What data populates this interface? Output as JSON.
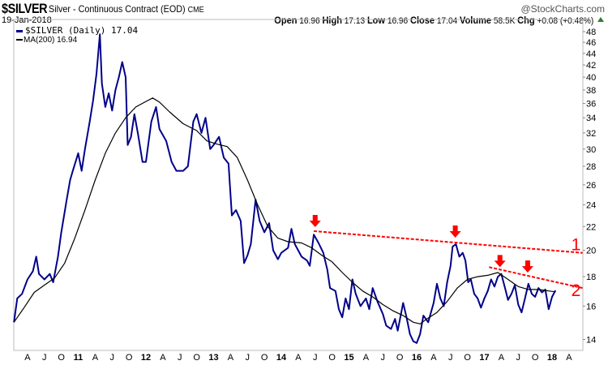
{
  "header": {
    "symbol": "$SILVER",
    "description": "Silver - Continuous Contract (EOD)",
    "exchange": "CME",
    "brand": "@StockCharts.com",
    "date": "19-Jan-2018",
    "stats": [
      {
        "label": "Open",
        "value": "16.96"
      },
      {
        "label": "High",
        "value": "17.13"
      },
      {
        "label": "Low",
        "value": "16.96"
      },
      {
        "label": "Close",
        "value": "17.04"
      },
      {
        "label": "Volume",
        "value": "58.5K"
      },
      {
        "label": "Chg",
        "value": "+0.08 (+0.48%)"
      }
    ]
  },
  "chart_data": {
    "type": "line",
    "title": "$SILVER Silver - Continuous Contract (EOD) CME",
    "yscale": "log",
    "ylim": [
      13.5,
      50
    ],
    "xlim": [
      2010.05,
      2018.45
    ],
    "yticks": [
      14,
      16,
      18,
      20,
      22,
      24,
      26,
      28,
      30,
      32,
      34,
      36,
      38,
      40,
      42,
      44,
      46,
      48
    ],
    "xticks": [
      {
        "t": 2010.25,
        "label": "A",
        "bold": false
      },
      {
        "t": 2010.5,
        "label": "J",
        "bold": false
      },
      {
        "t": 2010.75,
        "label": "O",
        "bold": false
      },
      {
        "t": 2011.0,
        "label": "11",
        "bold": true
      },
      {
        "t": 2011.25,
        "label": "A",
        "bold": false
      },
      {
        "t": 2011.5,
        "label": "J",
        "bold": false
      },
      {
        "t": 2011.75,
        "label": "O",
        "bold": false
      },
      {
        "t": 2012.0,
        "label": "12",
        "bold": true
      },
      {
        "t": 2012.25,
        "label": "A",
        "bold": false
      },
      {
        "t": 2012.5,
        "label": "J",
        "bold": false
      },
      {
        "t": 2012.75,
        "label": "O",
        "bold": false
      },
      {
        "t": 2013.0,
        "label": "13",
        "bold": true
      },
      {
        "t": 2013.25,
        "label": "A",
        "bold": false
      },
      {
        "t": 2013.5,
        "label": "J",
        "bold": false
      },
      {
        "t": 2013.75,
        "label": "O",
        "bold": false
      },
      {
        "t": 2014.0,
        "label": "14",
        "bold": true
      },
      {
        "t": 2014.25,
        "label": "A",
        "bold": false
      },
      {
        "t": 2014.5,
        "label": "J",
        "bold": false
      },
      {
        "t": 2014.75,
        "label": "O",
        "bold": false
      },
      {
        "t": 2015.0,
        "label": "15",
        "bold": true
      },
      {
        "t": 2015.25,
        "label": "A",
        "bold": false
      },
      {
        "t": 2015.5,
        "label": "J",
        "bold": false
      },
      {
        "t": 2015.75,
        "label": "O",
        "bold": false
      },
      {
        "t": 2016.0,
        "label": "16",
        "bold": true
      },
      {
        "t": 2016.25,
        "label": "A",
        "bold": false
      },
      {
        "t": 2016.5,
        "label": "J",
        "bold": false
      },
      {
        "t": 2016.75,
        "label": "O",
        "bold": false
      },
      {
        "t": 2017.0,
        "label": "17",
        "bold": true
      },
      {
        "t": 2017.25,
        "label": "A",
        "bold": false
      },
      {
        "t": 2017.5,
        "label": "J",
        "bold": false
      },
      {
        "t": 2017.75,
        "label": "O",
        "bold": false
      },
      {
        "t": 2018.0,
        "label": "18",
        "bold": true
      },
      {
        "t": 2018.25,
        "label": "A",
        "bold": false
      }
    ],
    "legend": [
      {
        "label": "$SILVER (Daily) 17.04",
        "color": "#00008b"
      },
      {
        "label": "MA(200) 16.94",
        "color": "#000000"
      }
    ],
    "series": [
      {
        "name": "$SILVER (Daily)",
        "color": "#00008b",
        "points": [
          [
            2010.05,
            15.0
          ],
          [
            2010.1,
            16.5
          ],
          [
            2010.17,
            16.8
          ],
          [
            2010.25,
            17.8
          ],
          [
            2010.33,
            18.4
          ],
          [
            2010.38,
            19.5
          ],
          [
            2010.42,
            18.2
          ],
          [
            2010.5,
            17.8
          ],
          [
            2010.58,
            18.2
          ],
          [
            2010.63,
            17.6
          ],
          [
            2010.7,
            19.5
          ],
          [
            2010.75,
            21.5
          ],
          [
            2010.83,
            24.5
          ],
          [
            2010.88,
            26.5
          ],
          [
            2010.92,
            27.5
          ],
          [
            2011.0,
            29.5
          ],
          [
            2011.05,
            27.5
          ],
          [
            2011.1,
            30.0
          ],
          [
            2011.17,
            33.5
          ],
          [
            2011.22,
            36.5
          ],
          [
            2011.27,
            40.5
          ],
          [
            2011.32,
            47.5
          ],
          [
            2011.35,
            39.0
          ],
          [
            2011.4,
            35.5
          ],
          [
            2011.45,
            37.5
          ],
          [
            2011.5,
            35.0
          ],
          [
            2011.55,
            38.0
          ],
          [
            2011.6,
            40.0
          ],
          [
            2011.65,
            42.5
          ],
          [
            2011.7,
            40.0
          ],
          [
            2011.73,
            30.5
          ],
          [
            2011.78,
            31.5
          ],
          [
            2011.83,
            34.5
          ],
          [
            2011.88,
            32.0
          ],
          [
            2011.95,
            28.5
          ],
          [
            2012.0,
            28.5
          ],
          [
            2012.08,
            33.5
          ],
          [
            2012.15,
            35.5
          ],
          [
            2012.2,
            32.5
          ],
          [
            2012.3,
            31.0
          ],
          [
            2012.38,
            28.5
          ],
          [
            2012.45,
            27.5
          ],
          [
            2012.55,
            27.5
          ],
          [
            2012.62,
            28.0
          ],
          [
            2012.7,
            33.5
          ],
          [
            2012.75,
            34.5
          ],
          [
            2012.82,
            32.0
          ],
          [
            2012.88,
            34.0
          ],
          [
            2012.95,
            30.0
          ],
          [
            2013.0,
            30.5
          ],
          [
            2013.08,
            31.5
          ],
          [
            2013.15,
            29.0
          ],
          [
            2013.22,
            28.3
          ],
          [
            2013.27,
            23.0
          ],
          [
            2013.33,
            23.5
          ],
          [
            2013.4,
            22.5
          ],
          [
            2013.45,
            19.0
          ],
          [
            2013.5,
            19.6
          ],
          [
            2013.55,
            20.5
          ],
          [
            2013.62,
            24.5
          ],
          [
            2013.68,
            22.5
          ],
          [
            2013.75,
            21.5
          ],
          [
            2013.82,
            22.3
          ],
          [
            2013.88,
            20.0
          ],
          [
            2013.95,
            19.3
          ],
          [
            2014.0,
            19.8
          ],
          [
            2014.1,
            20.2
          ],
          [
            2014.15,
            21.8
          ],
          [
            2014.2,
            20.5
          ],
          [
            2014.3,
            19.5
          ],
          [
            2014.38,
            19.2
          ],
          [
            2014.42,
            18.8
          ],
          [
            2014.48,
            21.3
          ],
          [
            2014.55,
            20.6
          ],
          [
            2014.62,
            19.8
          ],
          [
            2014.68,
            18.5
          ],
          [
            2014.72,
            17.2
          ],
          [
            2014.8,
            17.0
          ],
          [
            2014.85,
            15.8
          ],
          [
            2014.9,
            15.3
          ],
          [
            2014.95,
            16.5
          ],
          [
            2015.0,
            15.8
          ],
          [
            2015.05,
            17.8
          ],
          [
            2015.1,
            16.8
          ],
          [
            2015.17,
            16.0
          ],
          [
            2015.25,
            16.5
          ],
          [
            2015.3,
            15.8
          ],
          [
            2015.35,
            17.2
          ],
          [
            2015.42,
            16.3
          ],
          [
            2015.5,
            15.5
          ],
          [
            2015.55,
            14.8
          ],
          [
            2015.62,
            14.6
          ],
          [
            2015.68,
            15.2
          ],
          [
            2015.72,
            14.5
          ],
          [
            2015.8,
            16.2
          ],
          [
            2015.85,
            15.3
          ],
          [
            2015.9,
            14.3
          ],
          [
            2015.95,
            13.9
          ],
          [
            2016.0,
            13.8
          ],
          [
            2016.05,
            14.3
          ],
          [
            2016.1,
            15.4
          ],
          [
            2016.17,
            15.0
          ],
          [
            2016.25,
            16.2
          ],
          [
            2016.3,
            17.5
          ],
          [
            2016.35,
            16.5
          ],
          [
            2016.4,
            16.0
          ],
          [
            2016.45,
            17.6
          ],
          [
            2016.5,
            18.8
          ],
          [
            2016.53,
            20.3
          ],
          [
            2016.58,
            20.5
          ],
          [
            2016.63,
            19.5
          ],
          [
            2016.68,
            19.8
          ],
          [
            2016.72,
            19.2
          ],
          [
            2016.76,
            17.6
          ],
          [
            2016.8,
            17.8
          ],
          [
            2016.85,
            16.8
          ],
          [
            2016.9,
            16.5
          ],
          [
            2016.95,
            15.9
          ],
          [
            2017.0,
            16.5
          ],
          [
            2017.05,
            17.0
          ],
          [
            2017.1,
            17.8
          ],
          [
            2017.15,
            17.3
          ],
          [
            2017.2,
            18.0
          ],
          [
            2017.25,
            18.2
          ],
          [
            2017.3,
            17.3
          ],
          [
            2017.35,
            16.4
          ],
          [
            2017.4,
            16.8
          ],
          [
            2017.45,
            17.4
          ],
          [
            2017.5,
            16.1
          ],
          [
            2017.55,
            15.6
          ],
          [
            2017.6,
            16.5
          ],
          [
            2017.65,
            17.5
          ],
          [
            2017.7,
            16.8
          ],
          [
            2017.75,
            16.6
          ],
          [
            2017.8,
            17.2
          ],
          [
            2017.85,
            16.9
          ],
          [
            2017.9,
            17.1
          ],
          [
            2017.95,
            15.8
          ],
          [
            2018.0,
            16.6
          ],
          [
            2018.05,
            17.04
          ]
        ]
      },
      {
        "name": "MA(200)",
        "color": "#000000",
        "points": [
          [
            2010.05,
            15.0
          ],
          [
            2010.2,
            15.9
          ],
          [
            2010.35,
            16.9
          ],
          [
            2010.5,
            17.4
          ],
          [
            2010.65,
            17.9
          ],
          [
            2010.8,
            19.0
          ],
          [
            2010.95,
            21.0
          ],
          [
            2011.1,
            23.5
          ],
          [
            2011.25,
            26.5
          ],
          [
            2011.4,
            29.5
          ],
          [
            2011.55,
            32.0
          ],
          [
            2011.7,
            34.0
          ],
          [
            2011.85,
            35.5
          ],
          [
            2012.0,
            36.3
          ],
          [
            2012.1,
            36.8
          ],
          [
            2012.2,
            36.2
          ],
          [
            2012.35,
            34.8
          ],
          [
            2012.55,
            33.2
          ],
          [
            2012.75,
            32.3
          ],
          [
            2012.9,
            31.0
          ],
          [
            2013.05,
            30.6
          ],
          [
            2013.2,
            30.3
          ],
          [
            2013.35,
            29.0
          ],
          [
            2013.5,
            26.5
          ],
          [
            2013.65,
            24.0
          ],
          [
            2013.8,
            22.0
          ],
          [
            2013.95,
            21.0
          ],
          [
            2014.1,
            20.7
          ],
          [
            2014.3,
            20.6
          ],
          [
            2014.45,
            20.2
          ],
          [
            2014.6,
            19.6
          ],
          [
            2014.75,
            19.1
          ],
          [
            2014.9,
            18.3
          ],
          [
            2015.05,
            17.6
          ],
          [
            2015.2,
            17.0
          ],
          [
            2015.35,
            16.6
          ],
          [
            2015.5,
            16.1
          ],
          [
            2015.65,
            15.7
          ],
          [
            2015.8,
            15.4
          ],
          [
            2015.95,
            15.0
          ],
          [
            2016.05,
            14.9
          ],
          [
            2016.15,
            15.2
          ],
          [
            2016.3,
            15.6
          ],
          [
            2016.45,
            16.3
          ],
          [
            2016.6,
            17.2
          ],
          [
            2016.75,
            17.8
          ],
          [
            2016.9,
            18.0
          ],
          [
            2017.05,
            18.1
          ],
          [
            2017.2,
            18.3
          ],
          [
            2017.35,
            17.8
          ],
          [
            2017.5,
            17.3
          ],
          [
            2017.65,
            17.1
          ],
          [
            2017.8,
            17.1
          ],
          [
            2017.95,
            17.0
          ],
          [
            2018.05,
            16.94
          ]
        ]
      }
    ],
    "annotations": {
      "trendlines": [
        {
          "label": "1",
          "color": "#ff0000",
          "from": [
            2014.48,
            21.6
          ],
          "to": [
            2018.45,
            19.8
          ]
        },
        {
          "label": "2",
          "color": "#ff0000",
          "from": [
            2017.07,
            18.7
          ],
          "to": [
            2018.45,
            17.2
          ]
        }
      ],
      "arrows": [
        {
          "t": 2014.5,
          "price": 21.6
        },
        {
          "t": 2016.57,
          "price": 20.7
        },
        {
          "t": 2017.23,
          "price": 18.4
        },
        {
          "t": 2017.64,
          "price": 18.0
        }
      ]
    }
  }
}
